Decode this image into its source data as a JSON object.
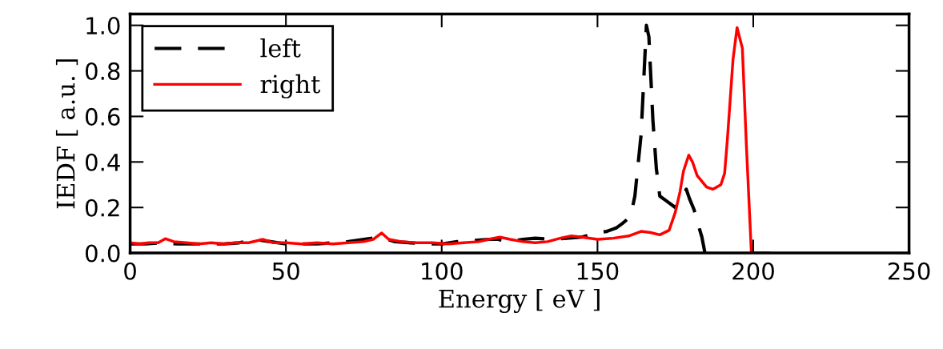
{
  "chart_data": {
    "type": "line",
    "xlabel": "Energy [ eV ]",
    "ylabel": "IEDF [ a.u. ]",
    "xlim": [
      0,
      250
    ],
    "ylim": [
      0,
      1.05
    ],
    "xticks": [
      0,
      50,
      100,
      150,
      200,
      250
    ],
    "yticks": [
      {
        "value": 0,
        "label": "0.0"
      },
      {
        "value": 0.2,
        "label": "0.2"
      },
      {
        "value": 0.4,
        "label": "0.4"
      },
      {
        "value": 0.6,
        "label": "0.6"
      },
      {
        "value": 0.8,
        "label": "0.8"
      },
      {
        "value": 1.0,
        "label": "1.0"
      }
    ],
    "grid": false,
    "legend": "top left",
    "series": [
      {
        "name": "left",
        "color": "#000000",
        "line_style": "dashed",
        "x": [
          0,
          5,
          10,
          15,
          20,
          25,
          30,
          35,
          40,
          45,
          50,
          55,
          60,
          65,
          70,
          75,
          80,
          85,
          90,
          95,
          100,
          105,
          110,
          115,
          118,
          122,
          126,
          130,
          135,
          140,
          145,
          150,
          153,
          156,
          158,
          160.6,
          162,
          164,
          165.7,
          166.5,
          167.8,
          168.9,
          170,
          172,
          175,
          177,
          178.5,
          179.5,
          181,
          182,
          183.5,
          184.5
        ],
        "values": [
          0.04,
          0.04,
          0.045,
          0.04,
          0.04,
          0.04,
          0.04,
          0.045,
          0.06,
          0.05,
          0.04,
          0.04,
          0.04,
          0.045,
          0.05,
          0.06,
          0.07,
          0.05,
          0.045,
          0.04,
          0.04,
          0.05,
          0.055,
          0.06,
          0.06,
          0.05,
          0.06,
          0.065,
          0.06,
          0.065,
          0.07,
          0.09,
          0.095,
          0.11,
          0.13,
          0.16,
          0.25,
          0.52,
          1.0,
          0.95,
          0.58,
          0.37,
          0.25,
          0.23,
          0.2,
          0.24,
          0.28,
          0.24,
          0.19,
          0.14,
          0.07,
          0.0
        ]
      },
      {
        "name": "right",
        "color": "#ff0000",
        "x": [
          0,
          3,
          6,
          9,
          11.3,
          14,
          18,
          22,
          26,
          30,
          34,
          38,
          42.7,
          46,
          50,
          55,
          60,
          65,
          70,
          75,
          78,
          80.7,
          83,
          87,
          92,
          97,
          102,
          107,
          112,
          115,
          118.7,
          122,
          126,
          130,
          134,
          138,
          141.6,
          145,
          150,
          155,
          160,
          164,
          167,
          170,
          173,
          175,
          176.5,
          177.6,
          179.3,
          180.5,
          182,
          185,
          187,
          189.6,
          190.8,
          191.7,
          193.5,
          194.8,
          196.5,
          197.8,
          199.4,
          205
        ],
        "values": [
          0.045,
          0.04,
          0.045,
          0.045,
          0.063,
          0.05,
          0.045,
          0.04,
          0.045,
          0.04,
          0.045,
          0.045,
          0.06,
          0.045,
          0.045,
          0.04,
          0.045,
          0.04,
          0.045,
          0.05,
          0.06,
          0.088,
          0.06,
          0.05,
          0.045,
          0.045,
          0.04,
          0.045,
          0.05,
          0.06,
          0.07,
          0.06,
          0.05,
          0.045,
          0.05,
          0.065,
          0.075,
          0.07,
          0.06,
          0.065,
          0.075,
          0.095,
          0.09,
          0.08,
          0.1,
          0.18,
          0.27,
          0.36,
          0.43,
          0.4,
          0.34,
          0.29,
          0.28,
          0.3,
          0.35,
          0.5,
          0.85,
          0.99,
          0.9,
          0.47,
          0.0,
          0.0
        ]
      }
    ]
  }
}
